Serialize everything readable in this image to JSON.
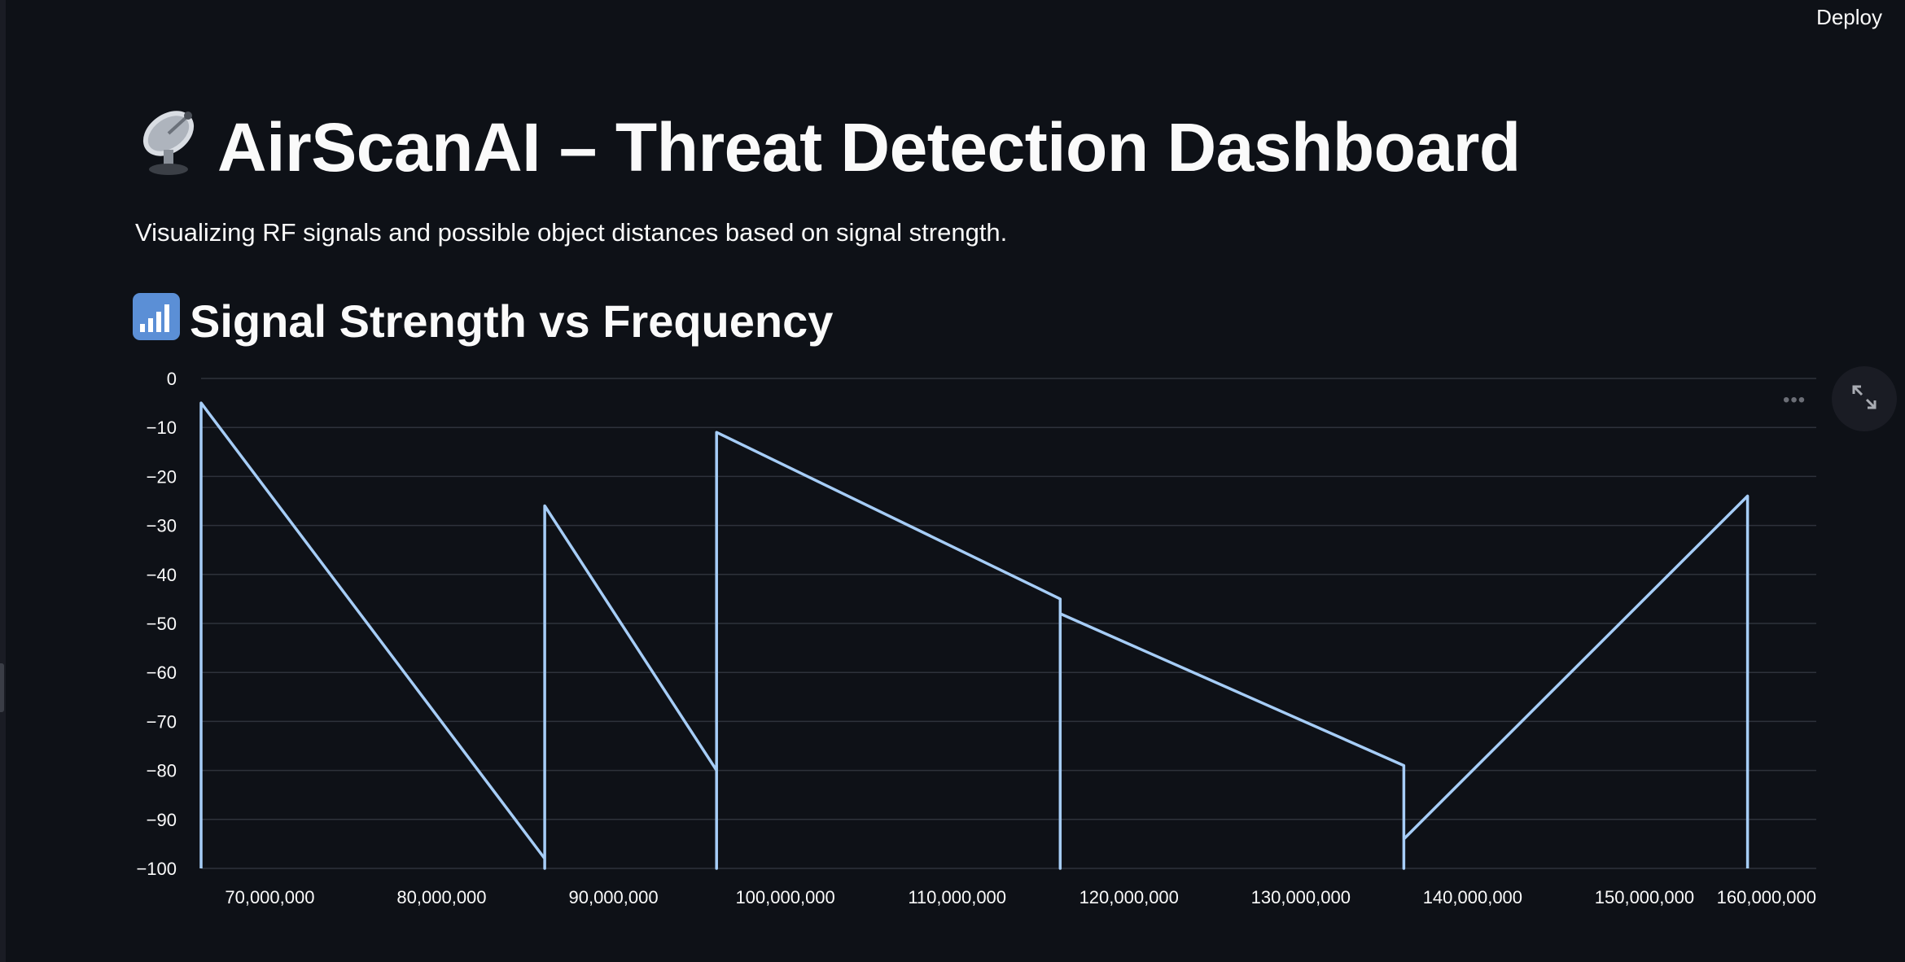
{
  "header": {
    "deploy_label": "Deploy"
  },
  "page": {
    "title": "AirScanAI – Threat Detection Dashboard",
    "title_icon": "satellite-dish-icon",
    "subtitle": "Visualizing RF signals and possible object distances based on signal strength.",
    "section_title": "Signal Strength vs Frequency",
    "section_icon": "signal-bars-icon"
  },
  "colors": {
    "background": "#0e1117",
    "text": "#fafafa",
    "line": "#a6cdf7",
    "grid": "#2e323b"
  },
  "chart_data": {
    "type": "line",
    "title": "",
    "xlabel": "",
    "ylabel": "",
    "xlim": [
      66000000,
      160000000
    ],
    "ylim": [
      -100,
      0
    ],
    "grid": true,
    "x_ticks": [
      70000000,
      80000000,
      90000000,
      100000000,
      110000000,
      120000000,
      130000000,
      140000000,
      150000000,
      160000000
    ],
    "x_tick_labels": [
      "70,000,000",
      "80,000,000",
      "90,000,000",
      "100,000,000",
      "110,000,000",
      "120,000,000",
      "130,000,000",
      "140,000,000",
      "150,000,000",
      "160,000,000"
    ],
    "y_ticks": [
      0,
      -10,
      -20,
      -30,
      -40,
      -50,
      -60,
      -70,
      -80,
      -90,
      -100
    ],
    "y_tick_labels": [
      "0",
      "−10",
      "−20",
      "−30",
      "−40",
      "−50",
      "−60",
      "−70",
      "−80",
      "−90",
      "−100"
    ],
    "series": [
      {
        "x": [
          66000000,
          66000000,
          86000000,
          86000000,
          86000000,
          96000000,
          96000000,
          96000000,
          116000000,
          116000000,
          116000000,
          136000000,
          136000000,
          136000000,
          156000000,
          156000000
        ],
        "y": [
          -100,
          -5,
          -98,
          -100,
          -26,
          -80,
          -100,
          -11,
          -45,
          -100,
          -48,
          -79,
          -100,
          -94,
          -24,
          -100
        ]
      }
    ]
  }
}
